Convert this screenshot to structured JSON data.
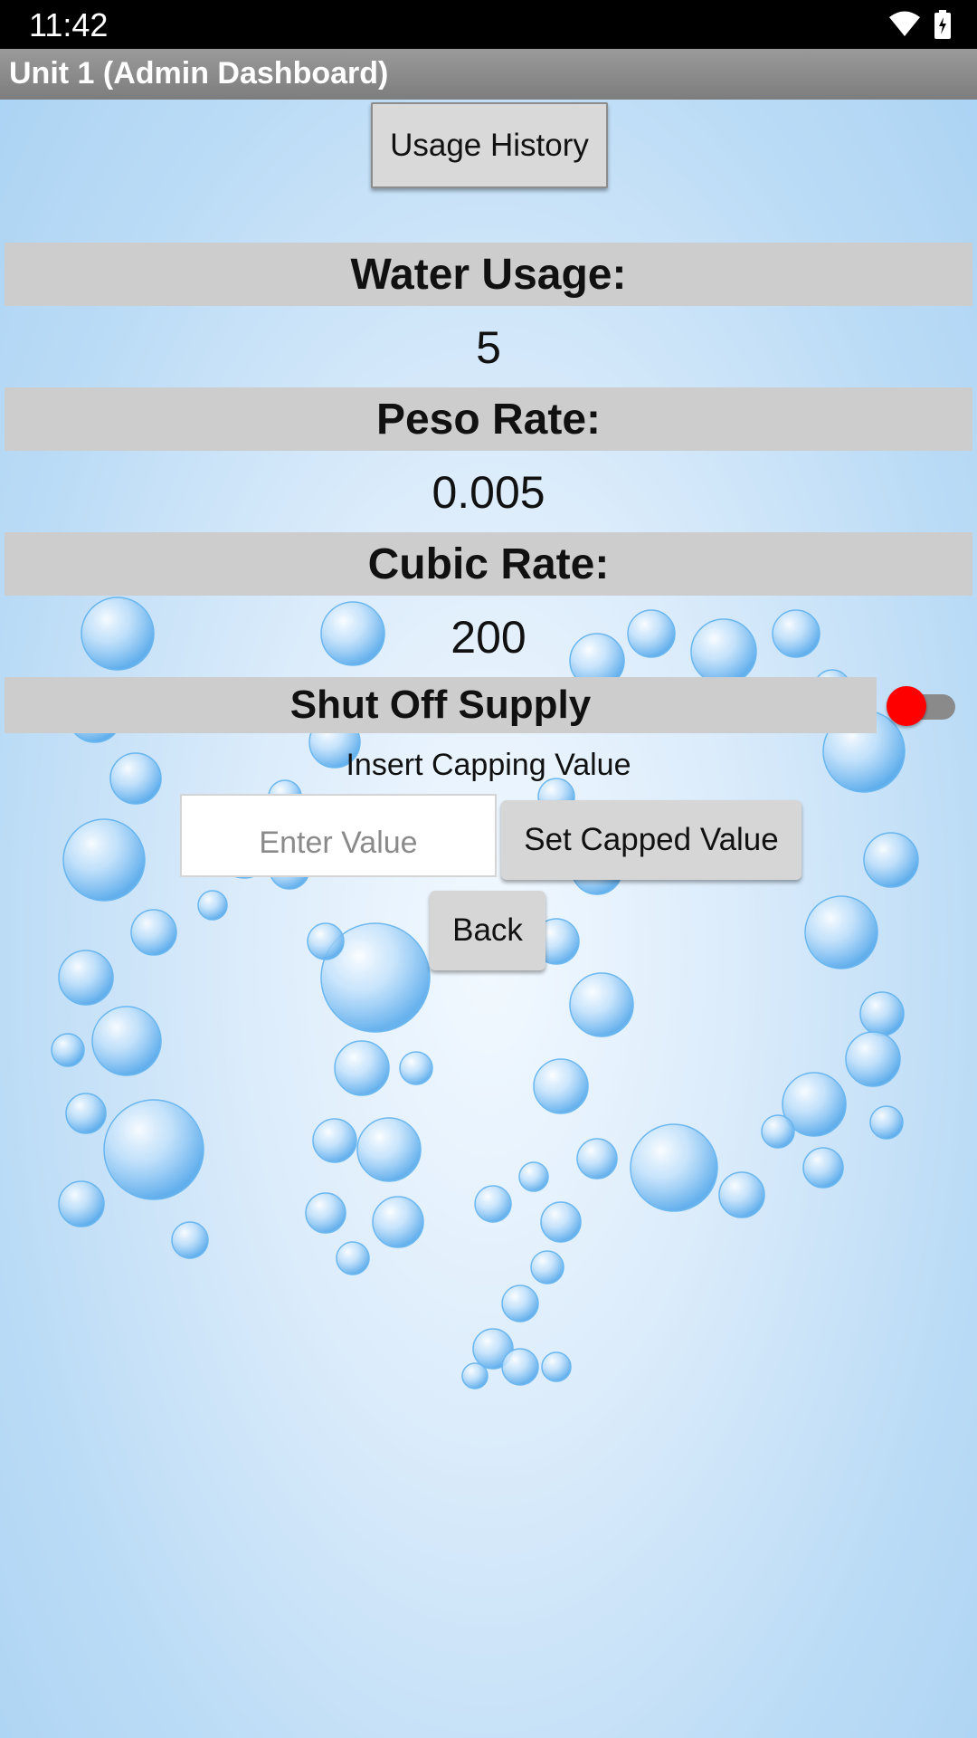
{
  "status_bar": {
    "time": "11:42",
    "icons": [
      "wifi-icon",
      "battery-icon"
    ]
  },
  "title_bar": {
    "title": "Unit 1 (Admin Dashboard)"
  },
  "usage_history_button": "Usage History",
  "water_usage": {
    "label": "Water Usage:",
    "value": "5"
  },
  "peso_rate": {
    "label": "Peso Rate:",
    "value": "0.005"
  },
  "cubic_rate": {
    "label": "Cubic Rate:",
    "value": "200"
  },
  "shut_off": {
    "label": "Shut Off Supply",
    "enabled": false,
    "toggle_color": "#ff0000"
  },
  "capping": {
    "label": "Insert Capping Value",
    "placeholder": "Enter Value",
    "set_button": "Set Capped Value"
  },
  "back_button": "Back",
  "colors": {
    "label_bg": "#cdcdcd",
    "title_bar": "#8a8a8a",
    "background": "#cfe6fb"
  }
}
